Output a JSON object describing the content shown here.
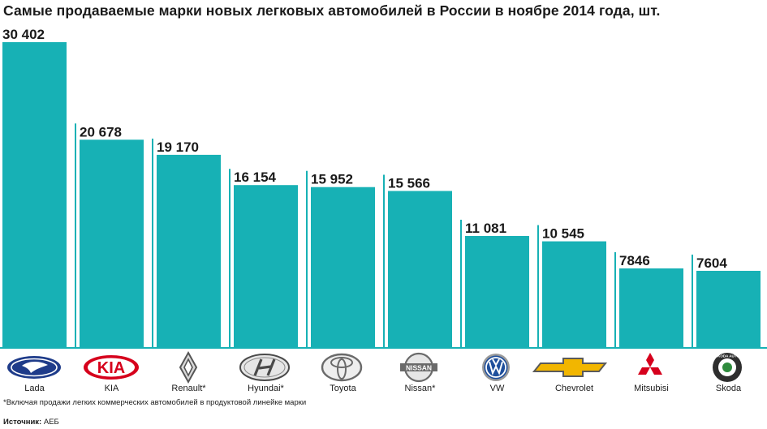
{
  "chart_data": {
    "type": "bar",
    "title": "Самые продаваемые марки новых легковых автомобилей в России в ноябре 2014 года, шт.",
    "categories": [
      "Lada",
      "KIA",
      "Renault*",
      "Hyundai*",
      "Toyota",
      "Nissan*",
      "VW",
      "Chevrolet",
      "Mitsubisi",
      "Skoda"
    ],
    "values": [
      30402,
      20678,
      19170,
      16154,
      15952,
      15566,
      11081,
      10545,
      7846,
      7604
    ],
    "value_labels": [
      "30 402",
      "20 678",
      "19 170",
      "16 154",
      "15 952",
      "15 566",
      "11 081",
      "10 545",
      "7846",
      "7604"
    ],
    "logo_text": {
      "kia": "KIA",
      "nissan": "NISSAN",
      "skoda": "ŠKODA AUTO"
    },
    "ylim": [
      0,
      30402
    ],
    "xlabel": "",
    "ylabel": "",
    "colors": {
      "bar": "#17b1b5",
      "text": "#1a1a1a",
      "logo_red": "#d6001c",
      "logo_blue": "#1f3c8a"
    }
  },
  "footnote": "*Включая продажи легких коммерческих автомобилей в продуктовой линейке марки",
  "source": {
    "label": "Источник:",
    "name": "АЕБ"
  }
}
